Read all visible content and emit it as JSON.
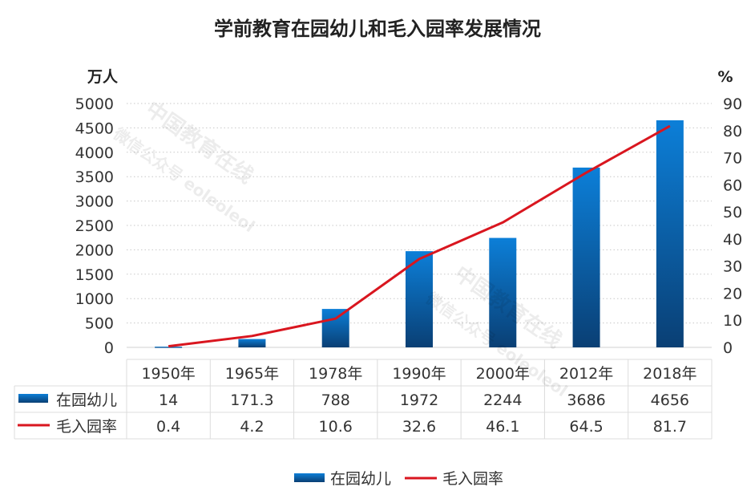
{
  "chart_data": {
    "type": "bar+line",
    "title": "学前教育在园幼儿和毛入园率发展情况",
    "left_axis": {
      "label": "万人",
      "ylim": [
        0,
        5000
      ],
      "ticks": [
        0,
        500,
        1000,
        1500,
        2000,
        2500,
        3000,
        3500,
        4000,
        4500,
        5000
      ]
    },
    "right_axis": {
      "label": "%",
      "ylim": [
        0,
        90
      ],
      "ticks": [
        0,
        10,
        20,
        30,
        40,
        50,
        60,
        70,
        80,
        90
      ]
    },
    "categories": [
      "1950年",
      "1965年",
      "1978年",
      "1990年",
      "2000年",
      "2012年",
      "2018年"
    ],
    "series": [
      {
        "name": "在园幼儿",
        "type": "bar",
        "axis": "left",
        "color": "#0a6cc4",
        "values": [
          14,
          171.3,
          788,
          1972,
          2244,
          3686,
          4656
        ],
        "labels": [
          "14",
          "171.3",
          "788",
          "1972",
          "2244",
          "3686",
          "4656"
        ]
      },
      {
        "name": "毛入园率",
        "type": "line",
        "axis": "right",
        "color": "#d9161f",
        "values": [
          0.4,
          4.2,
          10.6,
          32.6,
          46.1,
          64.5,
          81.7
        ],
        "labels": [
          "0.4",
          "4.2",
          "10.6",
          "32.6",
          "46.1",
          "64.5",
          "81.7"
        ]
      }
    ],
    "grid": true,
    "grid_style": "dotted",
    "data_table": true,
    "legend": "bottom"
  },
  "watermark": [
    "中国教育在线",
    "微信公众号 eoleoleol"
  ]
}
